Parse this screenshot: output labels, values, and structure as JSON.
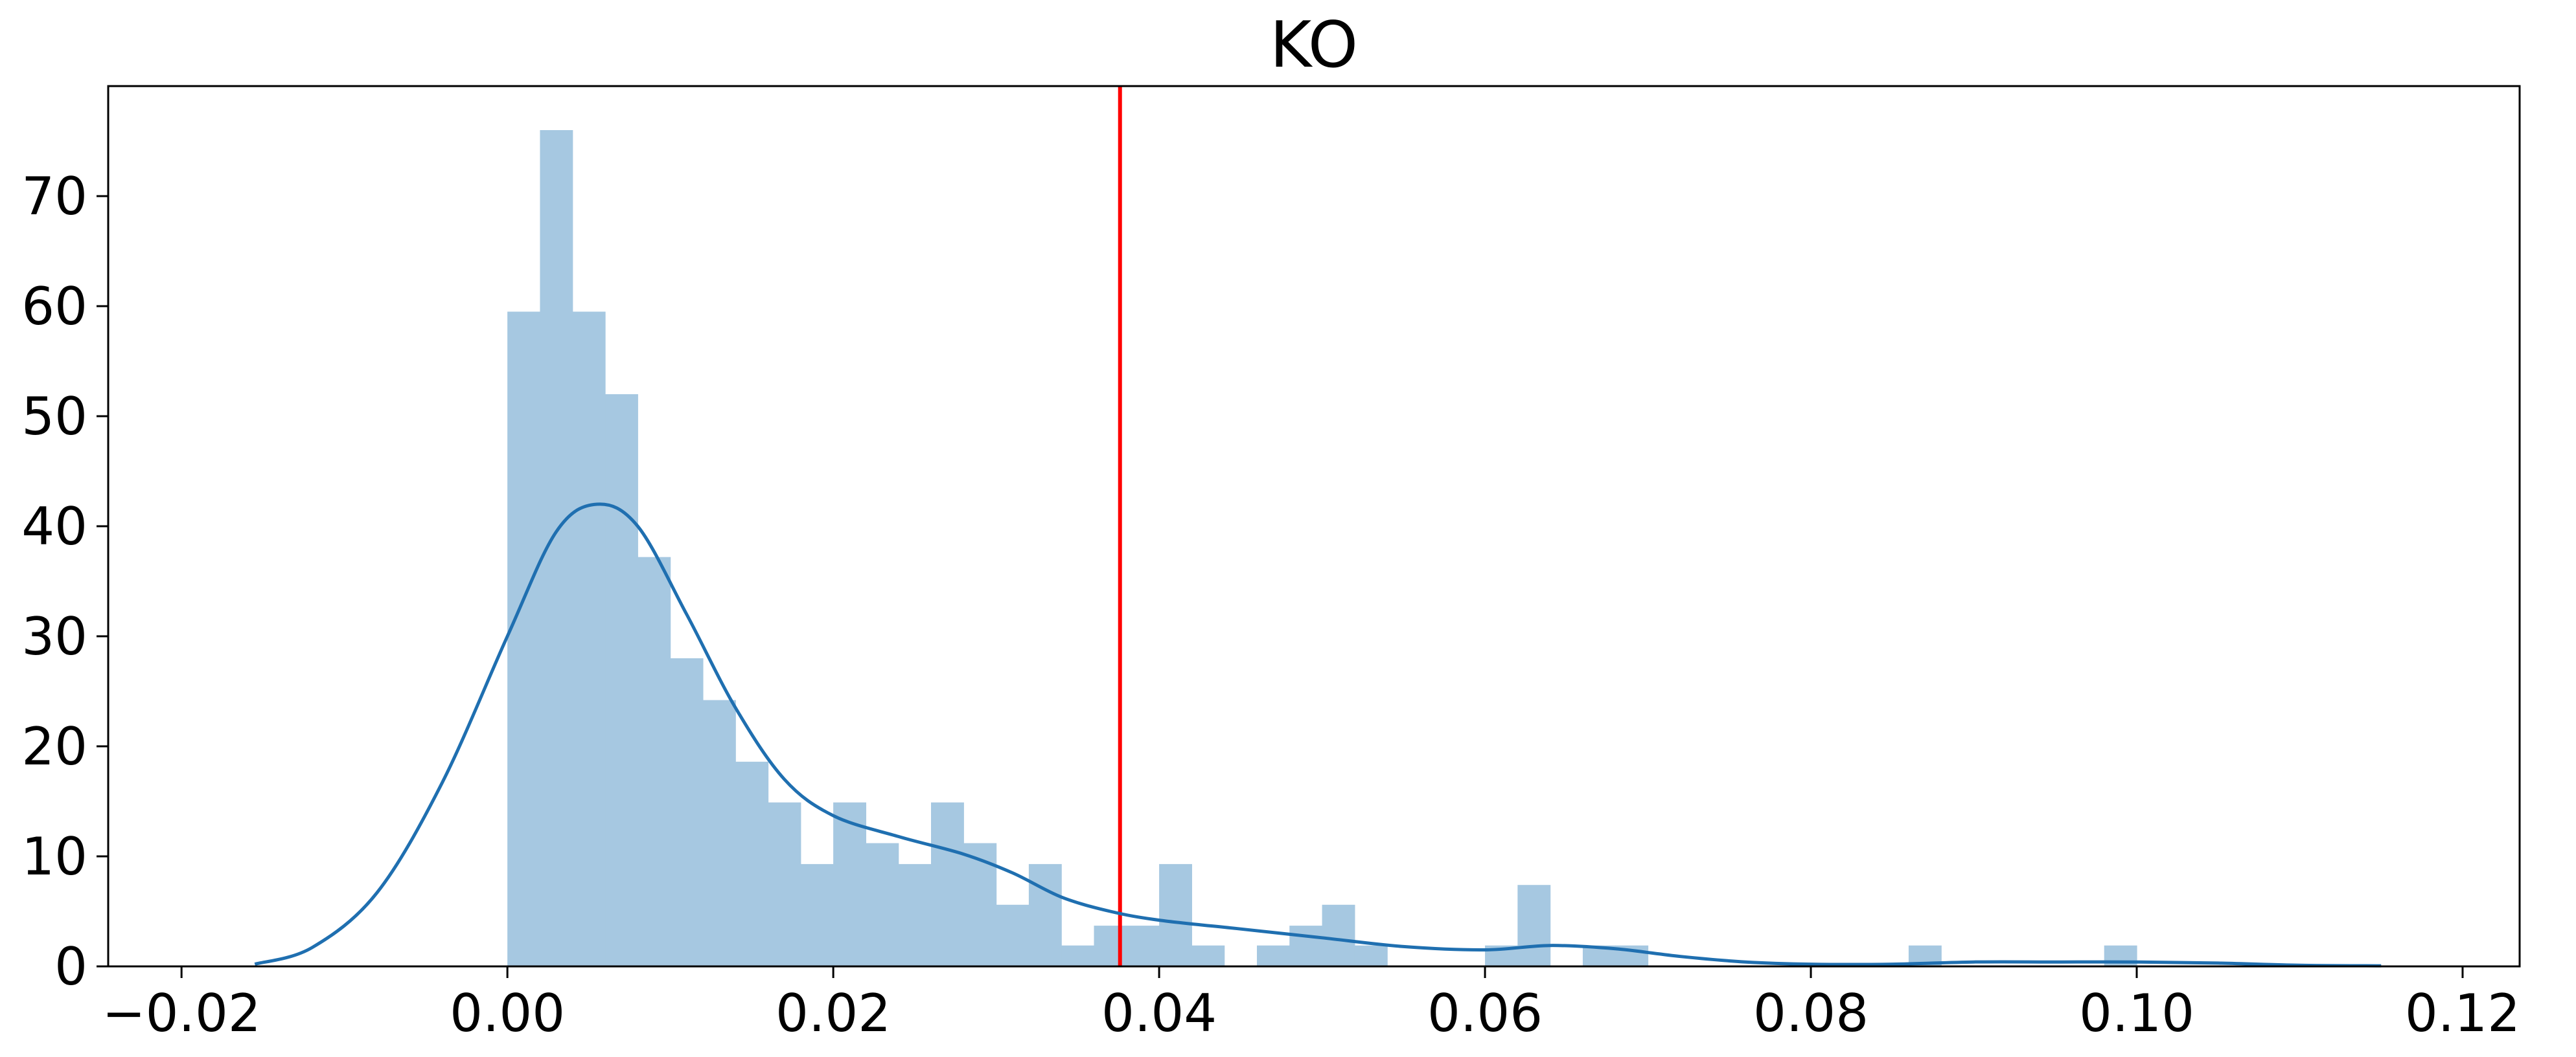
{
  "chart_data": {
    "type": "histogram",
    "title": "KO",
    "xlabel": "",
    "ylabel": "",
    "xlim": [
      -0.0245,
      0.1235
    ],
    "ylim": [
      0,
      80
    ],
    "grid": false,
    "legend": null,
    "x_ticks": [
      -0.02,
      0.0,
      0.02,
      0.04,
      0.06,
      0.08,
      0.1,
      0.12
    ],
    "x_tick_labels": [
      "−0.02",
      "0.00",
      "0.02",
      "0.04",
      "0.06",
      "0.08",
      "0.10",
      "0.12"
    ],
    "y_ticks": [
      0,
      10,
      20,
      30,
      40,
      50,
      60,
      70
    ],
    "y_tick_labels": [
      "0",
      "10",
      "20",
      "30",
      "40",
      "50",
      "60",
      "70"
    ],
    "histogram": {
      "color": "#a6c8e1",
      "bin_start": 0.0,
      "bin_width": 0.002,
      "values": [
        59.5,
        76,
        59.5,
        52,
        37.2,
        28,
        24.2,
        18.6,
        14.9,
        9.3,
        14.9,
        11.2,
        9.3,
        14.9,
        11.2,
        5.6,
        9.3,
        1.9,
        3.7,
        3.7,
        9.3,
        1.9,
        0,
        1.9,
        3.7,
        5.6,
        1.9,
        0,
        0,
        0,
        1.9,
        7.4,
        0,
        1.9,
        1.9,
        0,
        0,
        0,
        0,
        0,
        0,
        0,
        0,
        1.9,
        0,
        0,
        0,
        0,
        0,
        1.9
      ]
    },
    "kde": {
      "color": "#1f6fb0",
      "x": [
        -0.0155,
        -0.012,
        -0.008,
        -0.004,
        0.0,
        0.003,
        0.0055,
        0.008,
        0.011,
        0.014,
        0.017,
        0.02,
        0.024,
        0.028,
        0.031,
        0.034,
        0.037,
        0.04,
        0.045,
        0.05,
        0.055,
        0.06,
        0.064,
        0.068,
        0.072,
        0.076,
        0.08,
        0.085,
        0.09,
        0.095,
        0.1,
        0.105,
        0.11,
        0.115
      ],
      "y": [
        0.2,
        1.7,
        6.7,
        16.7,
        30.0,
        39.5,
        42.0,
        40.0,
        32.0,
        23.5,
        17.0,
        13.7,
        11.8,
        10.2,
        8.5,
        6.3,
        5.0,
        4.2,
        3.4,
        2.6,
        1.8,
        1.5,
        1.9,
        1.6,
        0.9,
        0.4,
        0.2,
        0.2,
        0.4,
        0.4,
        0.4,
        0.3,
        0.1,
        0.05
      ]
    },
    "vline": {
      "x": 0.0376,
      "color": "#ff0000"
    }
  }
}
